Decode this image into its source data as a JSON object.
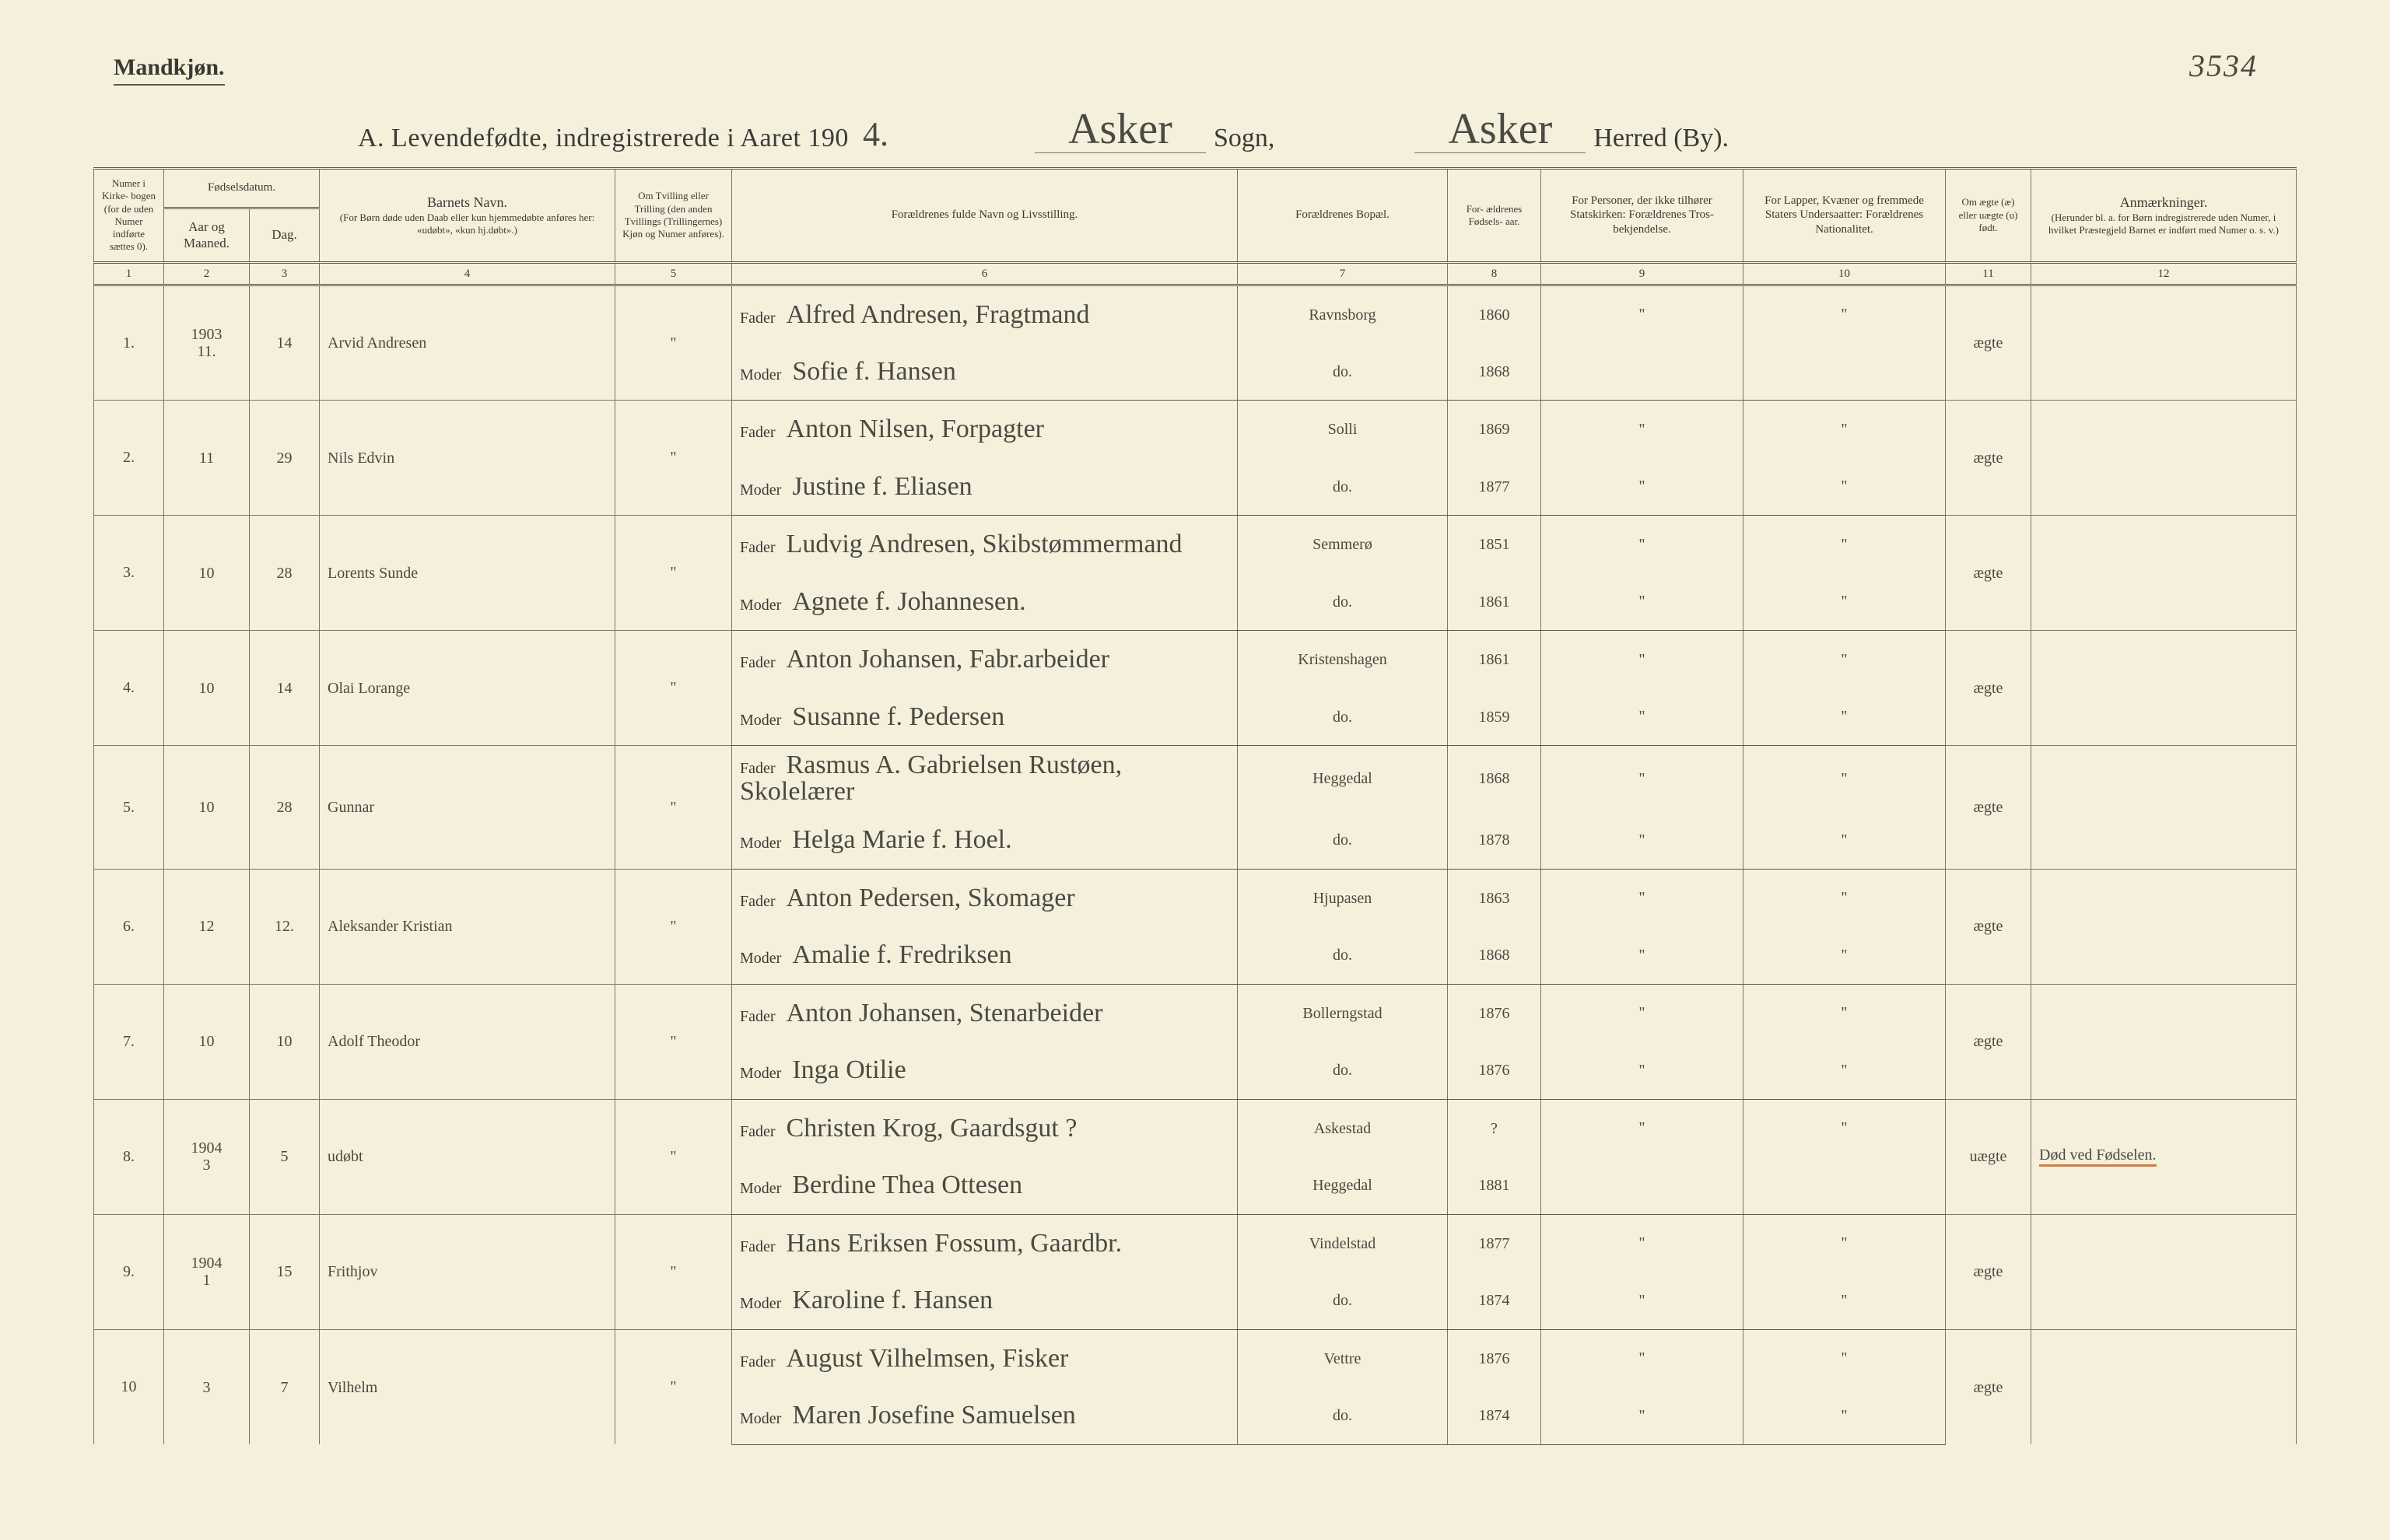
{
  "meta": {
    "page_number": "3534",
    "top_label": "Mandkjøn.",
    "title_prefix": "A.  Levendefødte, indregistrerede i Aaret 190",
    "year_suffix": "4.",
    "sogn_hw": "Asker",
    "sogn_label": "Sogn,",
    "herred_hw": "Asker",
    "herred_label": "Herred (By)."
  },
  "headers": {
    "c1": "Numer i Kirke- bogen (for de uden Numer indførte sættes 0).",
    "c2_group": "Fødselsdatum.",
    "c2a": "Aar og Maaned.",
    "c2b": "Dag.",
    "c4": "Barnets Navn.",
    "c4_sub": "(For Børn døde uden Daab eller kun hjemmedøbte anføres her: «udøbt», «kun hj.døbt».)",
    "c5": "Om Tvilling eller Trilling (den anden Tvillings (Trillingernes) Kjøn og Numer anføres).",
    "c6": "Forældrenes fulde Navn og Livsstilling.",
    "c7": "Forældrenes Bopæl.",
    "c8": "For- ældrenes Fødsels- aar.",
    "c9": "For Personer, der ikke tilhører Statskirken: Forældrenes Tros- bekjendelse.",
    "c10": "For Lapper, Kvæner og fremmede Staters Undersaatter: Forældrenes Nationalitet.",
    "c11": "Om ægte (æ) eller uægte (u) født.",
    "c12": "Anmærkninger.",
    "c12_sub": "(Herunder bl. a. for Børn indregistrerede uden Numer, i hvilket Præstegjeld Barnet er indført med Numer o. s. v.)",
    "rownums": [
      "1",
      "2",
      "3",
      "4",
      "5",
      "6",
      "7",
      "8",
      "9",
      "10",
      "11",
      "12"
    ]
  },
  "fm": {
    "fader": "Fader",
    "moder": "Moder"
  },
  "entries": [
    {
      "no": "1.",
      "aar": "1903",
      "mnd": "11.",
      "dag": "14",
      "navn": "Arvid Andresen",
      "tvil": "\"",
      "fader": "Alfred Andresen, Fragtmand",
      "moder": "Sofie f. Hansen",
      "bopel_f": "Ravnsborg",
      "bopel_m": "do.",
      "far_aar": "1860",
      "mor_aar": "1868",
      "c9f": "\"",
      "c9m": "",
      "c10f": "\"",
      "c10m": "",
      "aegte": "ægte",
      "anm": ""
    },
    {
      "no": "2.",
      "aar": "",
      "mnd": "11",
      "dag": "29",
      "navn": "Nils Edvin",
      "tvil": "\"",
      "fader": "Anton Nilsen, Forpagter",
      "moder": "Justine f. Eliasen",
      "bopel_f": "Solli",
      "bopel_m": "do.",
      "far_aar": "1869",
      "mor_aar": "1877",
      "c9f": "\"",
      "c9m": "\"",
      "c10f": "\"",
      "c10m": "\"",
      "aegte": "ægte",
      "anm": ""
    },
    {
      "no": "3.",
      "aar": "",
      "mnd": "10",
      "dag": "28",
      "navn": "Lorents Sunde",
      "tvil": "\"",
      "fader": "Ludvig Andresen, Skibstømmermand",
      "moder": "Agnete f. Johannesen.",
      "bopel_f": "Semmerø",
      "bopel_m": "do.",
      "far_aar": "1851",
      "mor_aar": "1861",
      "c9f": "\"",
      "c9m": "\"",
      "c10f": "\"",
      "c10m": "\"",
      "aegte": "ægte",
      "anm": ""
    },
    {
      "no": "4.",
      "aar": "",
      "mnd": "10",
      "dag": "14",
      "navn": "Olai Lorange",
      "tvil": "\"",
      "fader": "Anton Johansen, Fabr.arbeider",
      "moder": "Susanne f. Pedersen",
      "bopel_f": "Kristenshagen",
      "bopel_m": "do.",
      "far_aar": "1861",
      "mor_aar": "1859",
      "c9f": "\"",
      "c9m": "\"",
      "c10f": "\"",
      "c10m": "\"",
      "aegte": "ægte",
      "anm": ""
    },
    {
      "no": "5.",
      "aar": "",
      "mnd": "10",
      "dag": "28",
      "navn": "Gunnar",
      "tvil": "\"",
      "fader": "Rasmus A. Gabrielsen Rustøen, Skolelærer",
      "moder": "Helga Marie f. Hoel.",
      "bopel_f": "Heggedal",
      "bopel_m": "do.",
      "far_aar": "1868",
      "mor_aar": "1878",
      "c9f": "\"",
      "c9m": "\"",
      "c10f": "\"",
      "c10m": "\"",
      "aegte": "ægte",
      "anm": ""
    },
    {
      "no": "6.",
      "aar": "",
      "mnd": "12",
      "dag": "12.",
      "navn": "Aleksander Kristian",
      "tvil": "\"",
      "fader": "Anton Pedersen, Skomager",
      "moder": "Amalie f. Fredriksen",
      "bopel_f": "Hjupasen",
      "bopel_m": "do.",
      "far_aar": "1863",
      "mor_aar": "1868",
      "c9f": "\"",
      "c9m": "\"",
      "c10f": "\"",
      "c10m": "\"",
      "aegte": "ægte",
      "anm": ""
    },
    {
      "no": "7.",
      "aar": "",
      "mnd": "10",
      "dag": "10",
      "navn": "Adolf Theodor",
      "tvil": "\"",
      "fader": "Anton Johansen, Stenarbeider",
      "moder": "Inga Otilie",
      "bopel_f": "Bollerngstad",
      "bopel_m": "do.",
      "far_aar": "1876",
      "mor_aar": "1876",
      "c9f": "\"",
      "c9m": "\"",
      "c10f": "\"",
      "c10m": "\"",
      "aegte": "ægte",
      "anm": ""
    },
    {
      "no": "8.",
      "aar": "1904",
      "mnd": "3",
      "dag": "5",
      "navn": "udøbt",
      "tvil": "\"",
      "fader": "Christen Krog, Gaardsgut ?",
      "moder": "Berdine Thea Ottesen",
      "bopel_f": "Askestad",
      "bopel_m": "Heggedal",
      "far_aar": "?",
      "mor_aar": "1881",
      "c9f": "\"",
      "c9m": "",
      "c10f": "\"",
      "c10m": "",
      "aegte": "uægte",
      "anm": "Død ved Fødselen."
    },
    {
      "no": "9.",
      "aar": "1904",
      "mnd": "1",
      "dag": "15",
      "navn": "Frithjov",
      "tvil": "\"",
      "fader": "Hans Eriksen Fossum, Gaardbr.",
      "moder": "Karoline f. Hansen",
      "bopel_f": "Vindelstad",
      "bopel_m": "do.",
      "far_aar": "1877",
      "mor_aar": "1874",
      "c9f": "\"",
      "c9m": "\"",
      "c10f": "\"",
      "c10m": "\"",
      "aegte": "ægte",
      "anm": ""
    },
    {
      "no": "10",
      "aar": "",
      "mnd": "3",
      "dag": "7",
      "navn": "Vilhelm",
      "tvil": "\"",
      "fader": "August Vilhelmsen, Fisker",
      "moder": "Maren Josefine Samuelsen",
      "bopel_f": "Vettre",
      "bopel_m": "do.",
      "far_aar": "1876",
      "mor_aar": "1874",
      "c9f": "\"",
      "c9m": "\"",
      "c10f": "\"",
      "c10m": "\"",
      "aegte": "ægte",
      "anm": ""
    }
  ]
}
